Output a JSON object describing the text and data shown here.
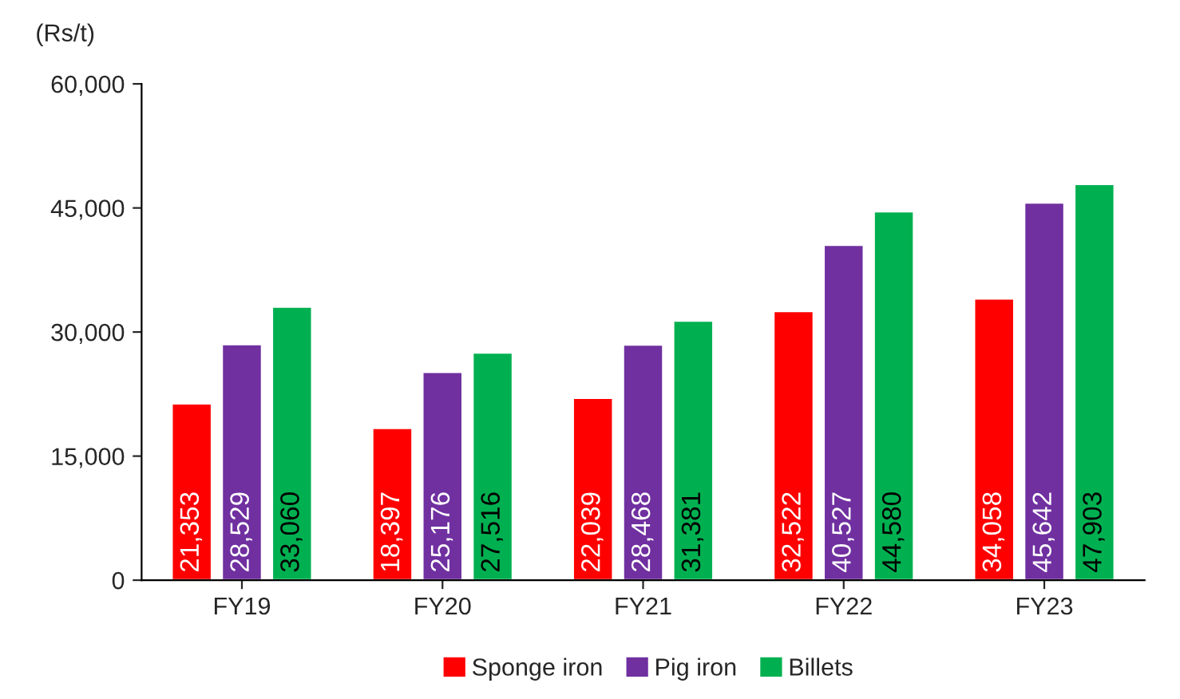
{
  "chart_data": {
    "type": "bar",
    "ylabel": "(Rs/t)",
    "categories": [
      "FY19",
      "FY20",
      "FY21",
      "FY22",
      "FY23"
    ],
    "series": [
      {
        "name": "Sponge iron",
        "color": "#ff0000",
        "values": [
          21353,
          18397,
          22039,
          32522,
          34058
        ],
        "value_labels": [
          "21,353",
          "18,397",
          "22,039",
          "32,522",
          "34,058"
        ]
      },
      {
        "name": "Pig iron",
        "color": "#7030a0",
        "values": [
          28529,
          25176,
          28468,
          40527,
          45642
        ],
        "value_labels": [
          "28,529",
          "25,176",
          "28,468",
          "40,527",
          "45,642"
        ]
      },
      {
        "name": "Billets",
        "color": "#00b050",
        "values": [
          33060,
          27516,
          31381,
          44580,
          47903
        ],
        "value_labels": [
          "33,060",
          "27,516",
          "31,381",
          "44,580",
          "47,903"
        ]
      }
    ],
    "ylim": [
      0,
      60000
    ],
    "yticks": [
      0,
      {
        "value": 15000,
        "label": "15,000"
      },
      {
        "value": 30000,
        "label": "30,000"
      },
      {
        "value": 45000,
        "label": "45,000"
      },
      {
        "value": 60000,
        "label": "60,000"
      }
    ],
    "grid": false,
    "legend": "bottom"
  }
}
